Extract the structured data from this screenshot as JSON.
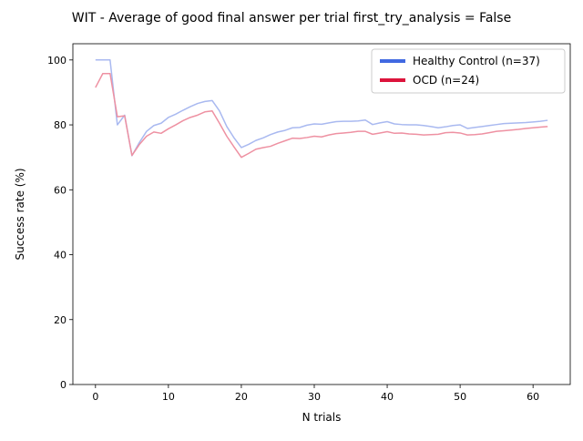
{
  "chart_data": {
    "type": "line",
    "title": "WIT - Average of good final answer per trial first_try_analysis = False",
    "xlabel": "N trials",
    "ylabel": "Success rate (%)",
    "xlim": [
      -3.1,
      65.1
    ],
    "ylim": [
      0,
      105
    ],
    "xticks": [
      0,
      10,
      20,
      30,
      40,
      50,
      60
    ],
    "yticks": [
      0,
      20,
      40,
      60,
      80,
      100
    ],
    "grid": false,
    "legend_position": "top-right",
    "x": [
      0,
      1,
      2,
      3,
      4,
      5,
      6,
      7,
      8,
      9,
      10,
      11,
      12,
      13,
      14,
      15,
      16,
      17,
      18,
      19,
      20,
      21,
      22,
      23,
      24,
      25,
      26,
      27,
      28,
      29,
      30,
      31,
      32,
      33,
      34,
      35,
      36,
      37,
      38,
      39,
      40,
      41,
      42,
      43,
      44,
      45,
      46,
      47,
      48,
      49,
      50,
      51,
      52,
      53,
      54,
      55,
      56,
      57,
      58,
      59,
      60,
      61,
      62
    ],
    "series": [
      {
        "name": "Healthy Control (n=37)",
        "legend_color": "#4169e1",
        "line_color": "#a9b9f0",
        "values": [
          100,
          100,
          100,
          80,
          83,
          70.5,
          74.5,
          78,
          79.8,
          80.5,
          82.3,
          83.3,
          84.5,
          85.6,
          86.6,
          87.2,
          87.5,
          84.3,
          79.5,
          76,
          73,
          74,
          75.2,
          76,
          77,
          77.8,
          78.3,
          79.1,
          79.2,
          79.9,
          80.3,
          80.2,
          80.6,
          81,
          81.1,
          81.1,
          81.2,
          81.5,
          80.1,
          80.6,
          81,
          80.3,
          80.1,
          80,
          80,
          79.8,
          79.5,
          79.1,
          79.4,
          79.8,
          80,
          78.9,
          79.2,
          79.5,
          79.8,
          80.1,
          80.4,
          80.5,
          80.6,
          80.7,
          80.9,
          81.1,
          81.4
        ]
      },
      {
        "name": "OCD (n=24)",
        "legend_color": "#dc143c",
        "line_color": "#ee91a2",
        "values": [
          91.5,
          95.8,
          95.8,
          82.5,
          82.8,
          70.6,
          73.9,
          76.5,
          77.8,
          77.4,
          78.8,
          80,
          81.3,
          82.3,
          83,
          84,
          84.3,
          80.5,
          76.5,
          73.2,
          70,
          71.2,
          72.5,
          73,
          73.4,
          74.3,
          75.1,
          75.9,
          75.8,
          76.1,
          76.5,
          76.3,
          76.9,
          77.3,
          77.5,
          77.7,
          78,
          78,
          77.1,
          77.5,
          77.9,
          77.4,
          77.5,
          77.2,
          77.1,
          76.9,
          77,
          77.1,
          77.6,
          77.7,
          77.5,
          76.9,
          77,
          77.2,
          77.6,
          78,
          78.2,
          78.4,
          78.6,
          78.9,
          79.1,
          79.3,
          79.5
        ]
      }
    ]
  }
}
